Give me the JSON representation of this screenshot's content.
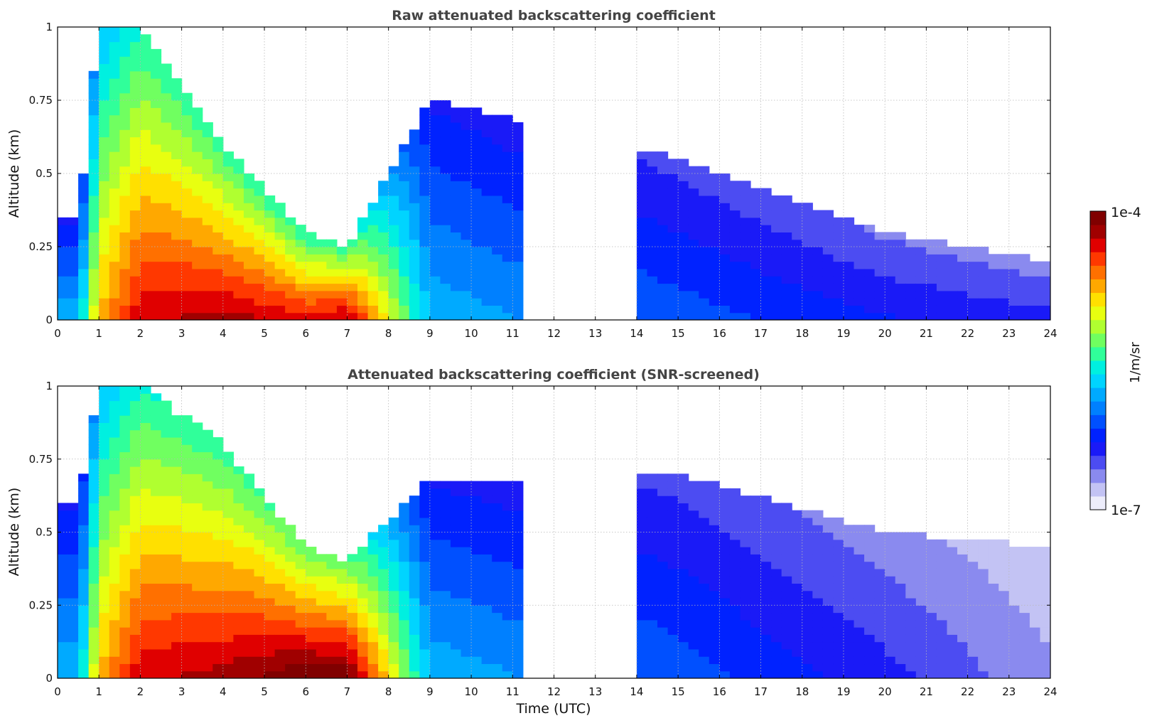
{
  "colorbar": {
    "label": "1/m/sr",
    "max_label": "1e-4",
    "min_label": "1e-7",
    "colors": [
      "#ededfb",
      "#c3c3f4",
      "#8a8aef",
      "#4c4cf2",
      "#1a1af7",
      "#0022ff",
      "#0050ff",
      "#0080ff",
      "#00aaff",
      "#00d4ff",
      "#00f0e0",
      "#30ff9a",
      "#70ff60",
      "#b0ff30",
      "#e8ff10",
      "#ffe000",
      "#ffa800",
      "#ff7000",
      "#ff3800",
      "#e00000",
      "#a00000",
      "#800000"
    ]
  },
  "xlabel": "Time (UTC)",
  "chart_data": [
    {
      "type": "heatmap",
      "title": "Raw attenuated backscattering coefficient",
      "xlabel": "Time (UTC)",
      "ylabel": "Altitude (km)",
      "xlim": [
        0,
        24
      ],
      "ylim": [
        0,
        1
      ],
      "x_ticks": [
        "0",
        "1",
        "2",
        "3",
        "4",
        "5",
        "6",
        "7",
        "8",
        "9",
        "10",
        "11",
        "12",
        "13",
        "14",
        "15",
        "16",
        "17",
        "18",
        "19",
        "20",
        "21",
        "22",
        "23",
        "24"
      ],
      "y_ticks": [
        "0",
        "0.25",
        "0.5",
        "0.75",
        "1"
      ],
      "grid": true,
      "scale": "log",
      "clim": [
        1e-07,
        0.0001
      ],
      "no_data_intervals": [
        [
          11.3,
          14.1
        ]
      ],
      "approx_profile": [
        {
          "t": 0.5,
          "log_value_near_ground": -5.8,
          "top_km": 0.35
        },
        {
          "t": 1.0,
          "log_value_near_ground": -4.8,
          "top_km": 1.0
        },
        {
          "t": 2.0,
          "log_value_near_ground": -4.3,
          "top_km": 1.0
        },
        {
          "t": 4.0,
          "log_value_near_ground": -4.2,
          "top_km": 0.6
        },
        {
          "t": 6.0,
          "log_value_near_ground": -4.3,
          "top_km": 0.3
        },
        {
          "t": 7.0,
          "log_value_near_ground": -4.2,
          "top_km": 0.25
        },
        {
          "t": 9.0,
          "log_value_near_ground": -5.8,
          "top_km": 0.75
        },
        {
          "t": 15.0,
          "log_value_near_ground": -6.1,
          "top_km": 0.55
        },
        {
          "t": 20.0,
          "log_value_near_ground": -6.3,
          "top_km": 0.3
        },
        {
          "t": 24.0,
          "log_value_near_ground": -6.4,
          "top_km": 0.2
        }
      ]
    },
    {
      "type": "heatmap",
      "title": "Attenuated backscattering coefficient (SNR-screened)",
      "xlabel": "Time (UTC)",
      "ylabel": "Altitude (km)",
      "xlim": [
        0,
        24
      ],
      "ylim": [
        0,
        1
      ],
      "x_ticks": [
        "0",
        "1",
        "2",
        "3",
        "4",
        "5",
        "6",
        "7",
        "8",
        "9",
        "10",
        "11",
        "12",
        "13",
        "14",
        "15",
        "16",
        "17",
        "18",
        "19",
        "20",
        "21",
        "22",
        "23",
        "24"
      ],
      "y_ticks": [
        "0",
        "0.25",
        "0.5",
        "0.75",
        "1"
      ],
      "grid": true,
      "scale": "log",
      "clim": [
        1e-07,
        0.0001
      ],
      "no_data_intervals": [
        [
          11.3,
          14.1
        ]
      ],
      "approx_profile": [
        {
          "t": 0.5,
          "log_value_near_ground": -5.8,
          "top_km": 0.6
        },
        {
          "t": 1.0,
          "log_value_near_ground": -4.8,
          "top_km": 1.0
        },
        {
          "t": 2.0,
          "log_value_near_ground": -4.3,
          "top_km": 1.0
        },
        {
          "t": 4.0,
          "log_value_near_ground": -4.2,
          "top_km": 0.8
        },
        {
          "t": 6.0,
          "log_value_near_ground": -4.0,
          "top_km": 0.45
        },
        {
          "t": 7.0,
          "log_value_near_ground": -4.0,
          "top_km": 0.4
        },
        {
          "t": 9.0,
          "log_value_near_ground": -5.8,
          "top_km": 0.68
        },
        {
          "t": 15.0,
          "log_value_near_ground": -6.1,
          "top_km": 0.7
        },
        {
          "t": 20.0,
          "log_value_near_ground": -6.4,
          "top_km": 0.5
        },
        {
          "t": 24.0,
          "log_value_near_ground": -6.7,
          "top_km": 0.45
        }
      ]
    }
  ]
}
